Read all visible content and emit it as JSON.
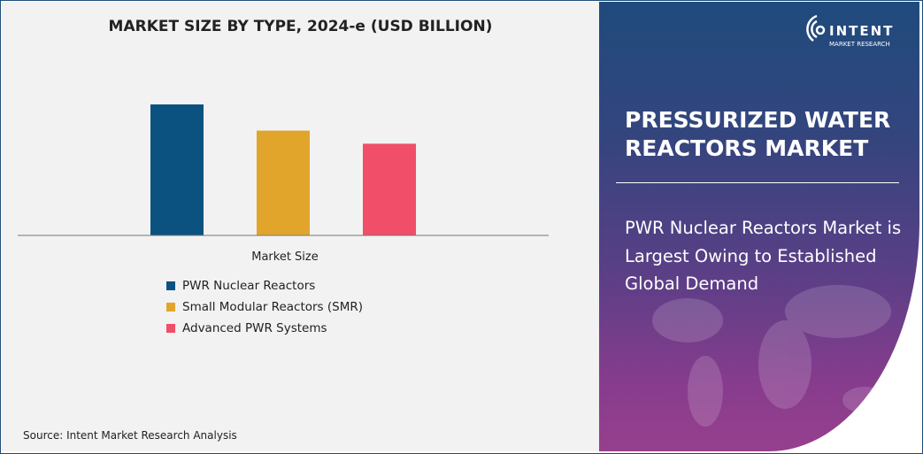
{
  "chart_data": {
    "type": "bar",
    "title": "MARKET SIZE BY TYPE, 2024-e (USD BILLION)",
    "xlabel": "Market Size",
    "ylabel": "",
    "categories": [
      "Market Size"
    ],
    "series": [
      {
        "name": "PWR Nuclear Reactors",
        "values": [
          1.0
        ],
        "color": "#0b5280"
      },
      {
        "name": "Small Modular Reactors (SMR)",
        "values": [
          0.8
        ],
        "color": "#e2a52c"
      },
      {
        "name": "Advanced PWR Systems",
        "values": [
          0.7
        ],
        "color": "#f04e69"
      }
    ],
    "ylim": [
      0,
      1
    ],
    "grid": false,
    "legend_position": "bottom"
  },
  "source": "Source: Intent Market Research Analysis",
  "brand": {
    "logo_text": "INTENT",
    "logo_sub": "MARKET RESEARCH"
  },
  "panel": {
    "title": "PRESSURIZED WATER REACTORS MARKET",
    "subtitle": "PWR Nuclear Reactors Market is Largest Owing to Established Global Demand"
  }
}
